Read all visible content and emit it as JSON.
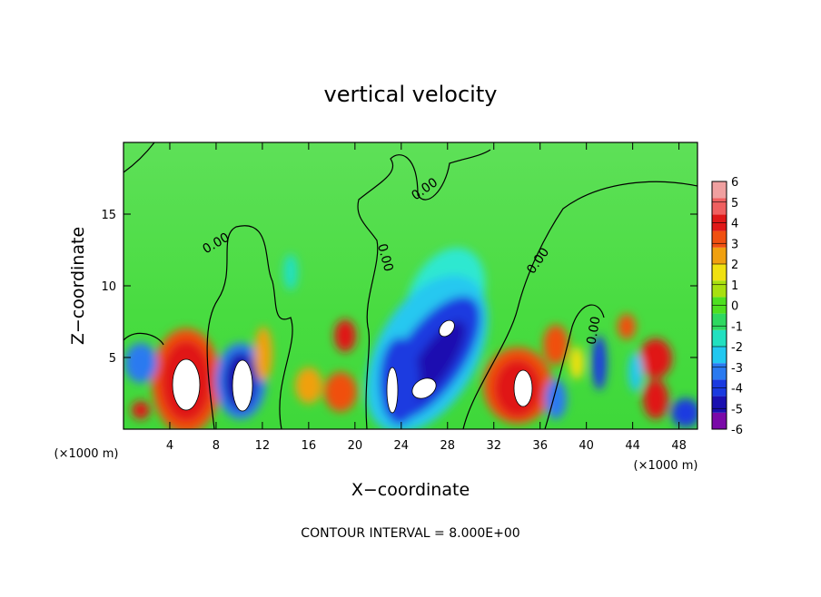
{
  "chart_data": {
    "type": "contour",
    "title": "vertical velocity",
    "x_label": "X−coordinate",
    "y_label": "Z−coordinate",
    "x_unit": "(×1000 m)",
    "x_unit_right": "(×1000 m)",
    "footer": "CONTOUR INTERVAL = 8.000E+00",
    "xlim": [
      0,
      49.6
    ],
    "xticks": [
      4,
      8,
      12,
      16,
      20,
      24,
      28,
      32,
      36,
      40,
      44,
      48
    ],
    "ylim": [
      0,
      20
    ],
    "yticks": [
      5,
      10,
      15
    ],
    "contour_labels": [
      "0.00",
      "0.00",
      "0.00",
      "0.00",
      "0.00"
    ],
    "colorbar": {
      "lim": [
        -6,
        6
      ],
      "ticks": [
        6,
        5,
        4,
        3,
        2,
        1,
        0,
        -1,
        -2,
        -3,
        -4,
        -5,
        -6
      ],
      "colors": [
        "#7a0aa8",
        "#1a10b0",
        "#1a3ae0",
        "#2a7af0",
        "#22c8f0",
        "#22e0c0",
        "#2ed860",
        "#4ee020",
        "#a8e010",
        "#f0e010",
        "#f0a010",
        "#f05010",
        "#e01818",
        "#f06060",
        "#f0a0a0"
      ]
    }
  }
}
